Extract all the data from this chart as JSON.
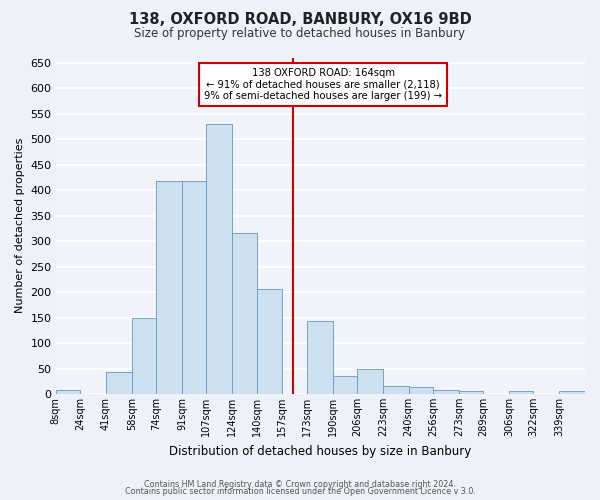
{
  "title": "138, OXFORD ROAD, BANBURY, OX16 9BD",
  "subtitle": "Size of property relative to detached houses in Banbury",
  "xlabel": "Distribution of detached houses by size in Banbury",
  "ylabel": "Number of detached properties",
  "bin_labels": [
    "8sqm",
    "24sqm",
    "41sqm",
    "58sqm",
    "74sqm",
    "91sqm",
    "107sqm",
    "124sqm",
    "140sqm",
    "157sqm",
    "173sqm",
    "190sqm",
    "206sqm",
    "223sqm",
    "240sqm",
    "256sqm",
    "273sqm",
    "289sqm",
    "306sqm",
    "322sqm",
    "339sqm"
  ],
  "bin_edges": [
    8,
    24,
    41,
    58,
    74,
    91,
    107,
    124,
    140,
    157,
    173,
    190,
    206,
    223,
    240,
    256,
    273,
    289,
    306,
    322,
    339,
    356
  ],
  "bar_heights": [
    8,
    0,
    44,
    150,
    418,
    417,
    530,
    315,
    205,
    0,
    143,
    35,
    49,
    16,
    14,
    8,
    5,
    0,
    5,
    0,
    5
  ],
  "bar_color": "#cce0f0",
  "bar_edge_color": "#6699bb",
  "property_size": 164,
  "vline_color": "#cc0000",
  "annotation_title": "138 OXFORD ROAD: 164sqm",
  "annotation_line1": "← 91% of detached houses are smaller (2,118)",
  "annotation_line2": "9% of semi-detached houses are larger (199) →",
  "annotation_box_color": "#cc0000",
  "ylim": [
    0,
    660
  ],
  "yticks": [
    0,
    50,
    100,
    150,
    200,
    250,
    300,
    350,
    400,
    450,
    500,
    550,
    600,
    650
  ],
  "bg_color": "#eef2f8",
  "plot_bg_color": "#f0f4fa",
  "grid_color": "#ffffff",
  "footer1": "Contains HM Land Registry data © Crown copyright and database right 2024.",
  "footer2": "Contains public sector information licensed under the Open Government Licence v 3.0."
}
